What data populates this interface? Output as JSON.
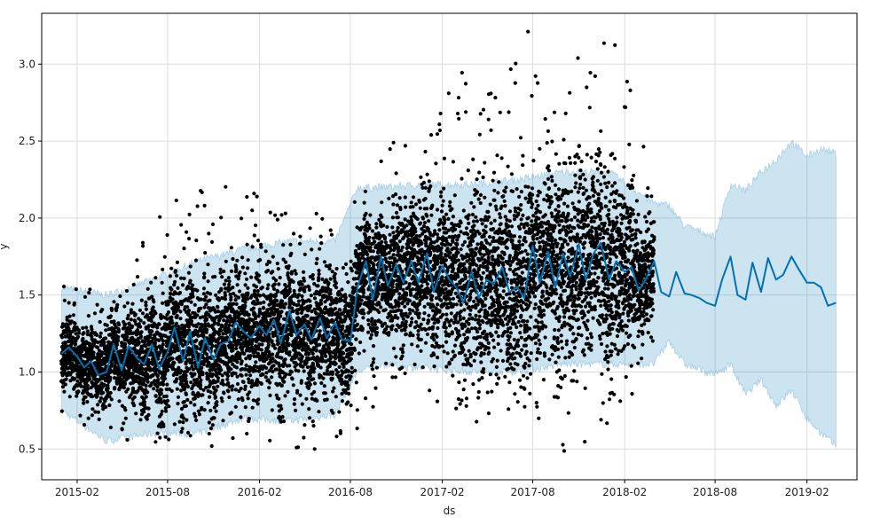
{
  "chart_data": {
    "type": "scatter",
    "title": "",
    "xlabel": "ds",
    "ylabel": "y",
    "xlim": [
      "2014-11-22",
      "2019-05-12"
    ],
    "ylim": [
      0.3,
      3.33
    ],
    "grid": true,
    "x_ticks": [
      "2015-02",
      "2015-08",
      "2016-02",
      "2016-08",
      "2017-02",
      "2017-08",
      "2018-02",
      "2018-08",
      "2019-02"
    ],
    "y_ticks": [
      "0.5",
      "1.0",
      "1.5",
      "2.0",
      "2.5",
      "3.0"
    ],
    "colors": {
      "points": "#000000",
      "forecast_line": "#0072B2",
      "uncertainty_band": "#0072B2",
      "grid": "#dcdcdc",
      "axes": "#000000"
    },
    "history_start": "2015-01-01",
    "history_end": "2018-03-31",
    "forecast_end": "2019-03-31",
    "series": [
      {
        "type": "scatter",
        "approximate_distribution": [
          {
            "x": "2015-01-15",
            "y_min": 0.7,
            "y_max": 1.6
          },
          {
            "x": "2015-04-15",
            "y_min": 0.5,
            "y_max": 1.5
          },
          {
            "x": "2015-07-15",
            "y_min": 0.55,
            "y_max": 2.07
          },
          {
            "x": "2015-10-15",
            "y_min": 0.5,
            "y_max": 2.2
          },
          {
            "x": "2016-01-15",
            "y_min": 0.6,
            "y_max": 2.22
          },
          {
            "x": "2016-04-15",
            "y_min": 0.46,
            "y_max": 2.1
          },
          {
            "x": "2016-07-15",
            "y_min": 0.52,
            "y_max": 2.05
          },
          {
            "x": "2016-10-15",
            "y_min": 0.85,
            "y_max": 2.45
          },
          {
            "x": "2017-01-15",
            "y_min": 0.82,
            "y_max": 2.8
          },
          {
            "x": "2017-04-15",
            "y_min": 0.65,
            "y_max": 3.03
          },
          {
            "x": "2017-07-15",
            "y_min": 0.63,
            "y_max": 3.25
          },
          {
            "x": "2017-10-15",
            "y_min": 0.44,
            "y_max": 3.05
          },
          {
            "x": "2018-01-15",
            "y_min": 0.7,
            "y_max": 3.17
          },
          {
            "x": "2018-03-31",
            "y_min": 1.0,
            "y_max": 2.3
          }
        ]
      },
      {
        "type": "line",
        "points": [
          {
            "x": "2015-01-01",
            "y": 1.12
          },
          {
            "x": "2015-01-15",
            "y": 1.16
          },
          {
            "x": "2015-02-01",
            "y": 1.1
          },
          {
            "x": "2015-02-15",
            "y": 1.03
          },
          {
            "x": "2015-03-01",
            "y": 1.07
          },
          {
            "x": "2015-03-15",
            "y": 0.98
          },
          {
            "x": "2015-04-01",
            "y": 1.0
          },
          {
            "x": "2015-04-15",
            "y": 1.18
          },
          {
            "x": "2015-05-01",
            "y": 1.01
          },
          {
            "x": "2015-05-15",
            "y": 1.17
          },
          {
            "x": "2015-06-01",
            "y": 1.09
          },
          {
            "x": "2015-06-15",
            "y": 1.05
          },
          {
            "x": "2015-07-01",
            "y": 1.18
          },
          {
            "x": "2015-07-15",
            "y": 1.02
          },
          {
            "x": "2015-08-01",
            "y": 1.13
          },
          {
            "x": "2015-08-15",
            "y": 1.29
          },
          {
            "x": "2015-09-01",
            "y": 1.07
          },
          {
            "x": "2015-09-15",
            "y": 1.26
          },
          {
            "x": "2015-10-01",
            "y": 1.03
          },
          {
            "x": "2015-10-15",
            "y": 1.22
          },
          {
            "x": "2015-11-01",
            "y": 1.08
          },
          {
            "x": "2015-11-15",
            "y": 1.18
          },
          {
            "x": "2015-12-01",
            "y": 1.2
          },
          {
            "x": "2015-12-15",
            "y": 1.32
          },
          {
            "x": "2016-01-01",
            "y": 1.26
          },
          {
            "x": "2016-01-15",
            "y": 1.22
          },
          {
            "x": "2016-02-01",
            "y": 1.3
          },
          {
            "x": "2016-02-15",
            "y": 1.24
          },
          {
            "x": "2016-03-01",
            "y": 1.34
          },
          {
            "x": "2016-03-15",
            "y": 1.19
          },
          {
            "x": "2016-04-01",
            "y": 1.4
          },
          {
            "x": "2016-04-15",
            "y": 1.24
          },
          {
            "x": "2016-05-01",
            "y": 1.31
          },
          {
            "x": "2016-05-15",
            "y": 1.21
          },
          {
            "x": "2016-06-01",
            "y": 1.35
          },
          {
            "x": "2016-06-15",
            "y": 1.22
          },
          {
            "x": "2016-07-01",
            "y": 1.32
          },
          {
            "x": "2016-07-15",
            "y": 1.21
          },
          {
            "x": "2016-08-01",
            "y": 1.2
          },
          {
            "x": "2016-08-15",
            "y": 1.55
          },
          {
            "x": "2016-09-01",
            "y": 1.72
          },
          {
            "x": "2016-09-15",
            "y": 1.47
          },
          {
            "x": "2016-10-01",
            "y": 1.75
          },
          {
            "x": "2016-10-15",
            "y": 1.56
          },
          {
            "x": "2016-11-01",
            "y": 1.7
          },
          {
            "x": "2016-11-15",
            "y": 1.58
          },
          {
            "x": "2016-12-01",
            "y": 1.72
          },
          {
            "x": "2016-12-15",
            "y": 1.58
          },
          {
            "x": "2017-01-01",
            "y": 1.77
          },
          {
            "x": "2017-01-15",
            "y": 1.52
          },
          {
            "x": "2017-02-01",
            "y": 1.69
          },
          {
            "x": "2017-02-15",
            "y": 1.6
          },
          {
            "x": "2017-03-01",
            "y": 1.55
          },
          {
            "x": "2017-03-15",
            "y": 1.45
          },
          {
            "x": "2017-04-01",
            "y": 1.65
          },
          {
            "x": "2017-04-15",
            "y": 1.48
          },
          {
            "x": "2017-05-01",
            "y": 1.6
          },
          {
            "x": "2017-05-15",
            "y": 1.57
          },
          {
            "x": "2017-06-01",
            "y": 1.68
          },
          {
            "x": "2017-06-15",
            "y": 1.52
          },
          {
            "x": "2017-07-01",
            "y": 1.55
          },
          {
            "x": "2017-07-15",
            "y": 1.48
          },
          {
            "x": "2017-08-01",
            "y": 1.82
          },
          {
            "x": "2017-08-15",
            "y": 1.58
          },
          {
            "x": "2017-09-01",
            "y": 1.78
          },
          {
            "x": "2017-09-15",
            "y": 1.55
          },
          {
            "x": "2017-10-01",
            "y": 1.77
          },
          {
            "x": "2017-10-15",
            "y": 1.62
          },
          {
            "x": "2017-11-01",
            "y": 1.83
          },
          {
            "x": "2017-11-15",
            "y": 1.6
          },
          {
            "x": "2017-12-01",
            "y": 1.77
          },
          {
            "x": "2017-12-15",
            "y": 1.84
          },
          {
            "x": "2018-01-01",
            "y": 1.6
          },
          {
            "x": "2018-01-15",
            "y": 1.72
          },
          {
            "x": "2018-02-01",
            "y": 1.65
          },
          {
            "x": "2018-02-15",
            "y": 1.68
          },
          {
            "x": "2018-03-01",
            "y": 1.53
          },
          {
            "x": "2018-03-15",
            "y": 1.6
          },
          {
            "x": "2018-04-01",
            "y": 1.72
          },
          {
            "x": "2018-04-15",
            "y": 1.52
          },
          {
            "x": "2018-05-01",
            "y": 1.49
          },
          {
            "x": "2018-05-15",
            "y": 1.65
          },
          {
            "x": "2018-06-01",
            "y": 1.51
          },
          {
            "x": "2018-06-15",
            "y": 1.5
          },
          {
            "x": "2018-07-01",
            "y": 1.48
          },
          {
            "x": "2018-07-15",
            "y": 1.45
          },
          {
            "x": "2018-08-01",
            "y": 1.43
          },
          {
            "x": "2018-08-15",
            "y": 1.6
          },
          {
            "x": "2018-09-01",
            "y": 1.75
          },
          {
            "x": "2018-09-15",
            "y": 1.5
          },
          {
            "x": "2018-10-01",
            "y": 1.47
          },
          {
            "x": "2018-10-15",
            "y": 1.71
          },
          {
            "x": "2018-11-01",
            "y": 1.52
          },
          {
            "x": "2018-11-15",
            "y": 1.74
          },
          {
            "x": "2018-12-01",
            "y": 1.6
          },
          {
            "x": "2018-12-15",
            "y": 1.63
          },
          {
            "x": "2019-01-01",
            "y": 1.75
          },
          {
            "x": "2019-01-15",
            "y": 1.67
          },
          {
            "x": "2019-02-01",
            "y": 1.58
          },
          {
            "x": "2019-02-15",
            "y": 1.58
          },
          {
            "x": "2019-03-01",
            "y": 1.55
          },
          {
            "x": "2019-03-15",
            "y": 1.43
          },
          {
            "x": "2019-03-31",
            "y": 1.45
          }
        ]
      },
      {
        "type": "area",
        "band": [
          {
            "x": "2015-01-01",
            "lower": 0.75,
            "upper": 1.55
          },
          {
            "x": "2015-04-01",
            "lower": 0.55,
            "upper": 1.5
          },
          {
            "x": "2015-07-01",
            "lower": 0.6,
            "upper": 1.6
          },
          {
            "x": "2015-10-01",
            "lower": 0.6,
            "upper": 1.72
          },
          {
            "x": "2016-01-01",
            "lower": 0.7,
            "upper": 1.8
          },
          {
            "x": "2016-04-01",
            "lower": 0.68,
            "upper": 1.85
          },
          {
            "x": "2016-07-01",
            "lower": 0.72,
            "upper": 1.85
          },
          {
            "x": "2016-08-15",
            "lower": 1.0,
            "upper": 2.2
          },
          {
            "x": "2016-10-01",
            "lower": 1.05,
            "upper": 2.2
          },
          {
            "x": "2017-01-01",
            "lower": 1.02,
            "upper": 2.22
          },
          {
            "x": "2017-04-01",
            "lower": 1.0,
            "upper": 2.22
          },
          {
            "x": "2017-07-01",
            "lower": 1.0,
            "upper": 2.25
          },
          {
            "x": "2017-10-01",
            "lower": 1.05,
            "upper": 2.3
          },
          {
            "x": "2018-01-01",
            "lower": 1.05,
            "upper": 2.3
          },
          {
            "x": "2018-03-31",
            "lower": 1.05,
            "upper": 2.1
          },
          {
            "x": "2018-05-01",
            "lower": 1.2,
            "upper": 2.08
          },
          {
            "x": "2018-06-01",
            "lower": 1.05,
            "upper": 1.95
          },
          {
            "x": "2018-08-01",
            "lower": 0.98,
            "upper": 1.88
          },
          {
            "x": "2018-09-01",
            "lower": 1.05,
            "upper": 2.22
          },
          {
            "x": "2018-10-01",
            "lower": 0.85,
            "upper": 2.18
          },
          {
            "x": "2018-11-01",
            "lower": 0.95,
            "upper": 2.3
          },
          {
            "x": "2018-12-01",
            "lower": 0.78,
            "upper": 2.38
          },
          {
            "x": "2019-01-01",
            "lower": 0.88,
            "upper": 2.5
          },
          {
            "x": "2019-02-01",
            "lower": 0.7,
            "upper": 2.4
          },
          {
            "x": "2019-03-01",
            "lower": 0.6,
            "upper": 2.45
          },
          {
            "x": "2019-03-31",
            "lower": 0.52,
            "upper": 2.42
          }
        ]
      }
    ]
  }
}
